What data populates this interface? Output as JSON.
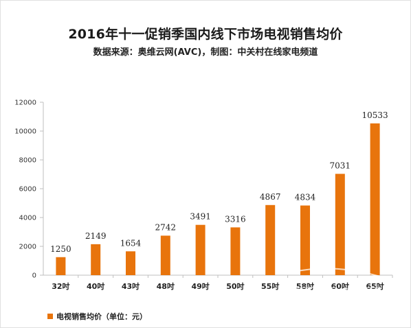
{
  "header": {
    "title": "2016年十一促销季国内线下市场电视销售均价",
    "subtitle": "数据来源：奥维云网(AVC)，制图：中关村在线家电频道"
  },
  "legend": {
    "label": "电视销售均价（单位：元）"
  },
  "colors": {
    "bar": "#E8740C",
    "axis": "#bfbfbf",
    "tick_label": "#333333"
  },
  "chart_data": {
    "type": "bar",
    "categories": [
      "32吋",
      "40吋",
      "43吋",
      "48吋",
      "49吋",
      "50吋",
      "55吋",
      "58吋",
      "60吋",
      "65吋"
    ],
    "series": [
      {
        "name": "电视销售均价（单位：元）",
        "values": [
          1250,
          2149,
          1654,
          2742,
          3491,
          3316,
          4867,
          4834,
          7031,
          10533
        ]
      }
    ],
    "ylim": [
      0,
      12000
    ],
    "yticks": [
      0,
      2000,
      4000,
      6000,
      8000,
      10000,
      12000
    ],
    "grid": false,
    "legend_position": "bottom-left",
    "data_labels": true
  }
}
